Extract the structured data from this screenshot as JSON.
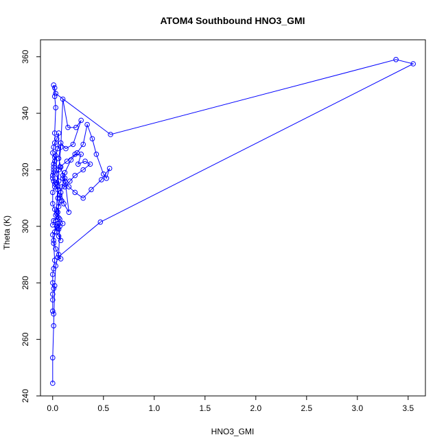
{
  "chart_data": {
    "type": "line",
    "title": "ATOM4 Southbound HNO3_GMI",
    "xlabel": "HNO3_GMI",
    "ylabel": "Theta (K)",
    "xlim": [
      -0.12,
      3.67
    ],
    "ylim": [
      240,
      366
    ],
    "x_ticks": [
      0,
      0.5,
      1,
      1.5,
      2,
      2.5,
      3,
      3.5
    ],
    "x_tick_labels": [
      "0.0",
      "0.5",
      "1.0",
      "1.5",
      "2.0",
      "2.5",
      "3.0",
      "3.5"
    ],
    "y_ticks": [
      240,
      260,
      280,
      300,
      320,
      340,
      360
    ],
    "y_tick_labels": [
      "240",
      "260",
      "280",
      "300",
      "320",
      "340",
      "360"
    ],
    "grid": false,
    "series": [
      {
        "color": "#0000ff",
        "marker": "open-circle",
        "x": [
          0.0,
          0.0,
          0.01,
          0.02,
          0.03,
          0.05,
          0.08,
          0.03,
          0.01,
          0.0,
          0.02,
          0.04,
          0.05,
          0.0,
          0.01,
          0.06,
          0.04,
          0.02,
          0.0,
          0.0,
          0.02,
          0.03,
          0.01,
          0.0,
          0.01,
          0.01,
          0.02,
          0.0,
          0.01,
          0.02,
          0.04,
          0.06,
          0.05,
          0.03,
          0.02,
          0.01,
          0.01,
          0.0,
          0.02,
          0.05,
          0.07,
          0.09,
          0.06,
          0.04,
          0.03,
          0.07,
          0.1,
          0.05,
          0.04,
          0.06,
          0.08,
          0.06,
          0.05,
          0.07,
          0.09,
          0.12,
          0.16,
          0.11,
          0.08,
          0.06,
          0.04,
          0.07,
          0.14,
          0.22,
          0.28,
          0.25,
          0.32,
          0.37,
          0.3,
          0.22,
          0.17,
          0.12,
          0.1,
          0.12,
          0.18,
          0.24,
          0.3,
          0.34,
          0.39,
          0.43,
          0.5,
          0.53,
          0.56,
          0.48,
          0.38,
          0.3,
          0.22,
          0.16,
          0.12,
          0.1,
          0.08,
          0.06,
          0.08,
          0.13,
          0.2,
          0.28,
          0.23,
          0.15,
          0.1,
          0.08,
          0.06,
          0.05,
          0.07,
          0.06,
          0.05,
          0.47,
          3.55,
          3.38,
          0.57,
          0.03,
          0.02,
          0.01,
          0.02,
          0.03,
          0.02,
          0.05,
          0.03,
          0.01,
          0.02,
          0.01,
          0.0,
          0.0,
          0.01,
          0.0,
          0.0,
          0.0,
          0.01
        ],
        "y": [
          244.5,
          253.5,
          264.8,
          279.0,
          286.0,
          289.0,
          288.5,
          292.0,
          295.0,
          297.0,
          298.0,
          300.0,
          301.0,
          300.5,
          302.0,
          303.0,
          304.5,
          306.0,
          308.0,
          312.0,
          314.0,
          315.5,
          316.0,
          318.0,
          320.0,
          322.0,
          324.5,
          326.0,
          328.0,
          329.5,
          331.0,
          333.0,
          327.5,
          325.0,
          323.0,
          321.0,
          319.0,
          317.0,
          315.0,
          313.0,
          311.0,
          309.0,
          307.0,
          305.5,
          304.0,
          302.5,
          301.0,
          299.5,
          298.0,
          296.5,
          295.0,
          299.0,
          305.0,
          310.0,
          314.0,
          317.0,
          305.0,
          308.0,
          312.0,
          316.0,
          318.5,
          321.0,
          323.0,
          325.5,
          325.5,
          322.0,
          323.0,
          322.0,
          320.0,
          318.0,
          316.0,
          314.0,
          317.0,
          319.0,
          323.5,
          326.0,
          329.0,
          336.0,
          331.0,
          325.5,
          318.5,
          317.0,
          320.5,
          316.5,
          313.0,
          310.0,
          312.0,
          314.0,
          316.0,
          318.0,
          321.0,
          324.0,
          329.5,
          327.5,
          329.0,
          337.5,
          335.0,
          335.0,
          345.0,
          328.0,
          320.0,
          310.0,
          300.0,
          290.0,
          289.0,
          301.5,
          357.5,
          359.0,
          332.5,
          347.0,
          349.0,
          350.0,
          346.0,
          342.0,
          333.0,
          314.0,
          302.0,
          294.0,
          288.0,
          285.0,
          283.0,
          280.0,
          278.0,
          276.0,
          274.0,
          270.0,
          269.0
        ]
      }
    ]
  }
}
